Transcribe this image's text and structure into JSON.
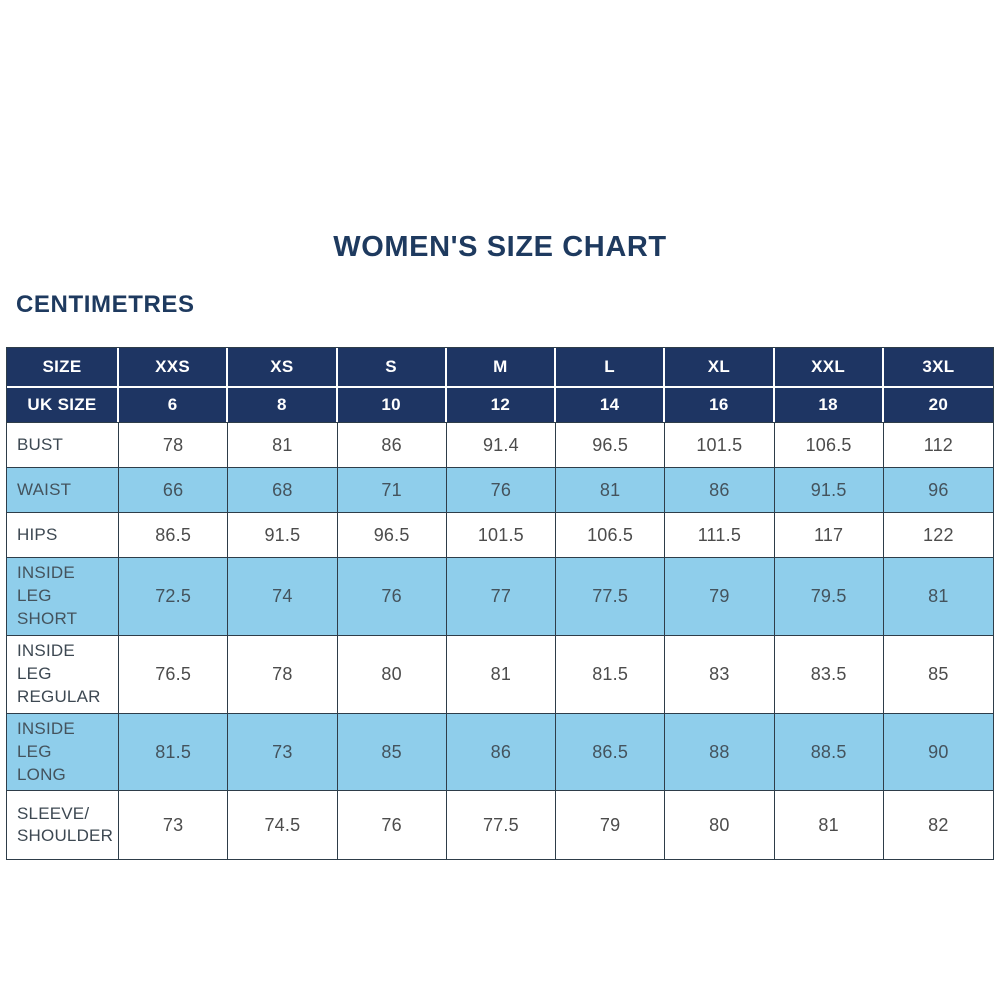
{
  "title": "WOMEN'S SIZE CHART",
  "unit_label": "CENTIMETRES",
  "colors": {
    "navy": "#1e3563",
    "light_blue": "#8fceeb",
    "border": "#2e3d49",
    "header_text": "#ffffff",
    "title_text": "#1e3a5f",
    "body_text": "#4c4c4c",
    "shaded_text": "#44535d",
    "label_text": "#3d4852"
  },
  "chart_data": {
    "type": "table",
    "title": "WOMEN'S SIZE CHART",
    "unit": "CENTIMETRES",
    "header": [
      "SIZE",
      "XXS",
      "XS",
      "S",
      "M",
      "L",
      "XL",
      "XXL",
      "3XL"
    ],
    "uk_size_row": {
      "label": "UK SIZE",
      "values": [
        "6",
        "8",
        "10",
        "12",
        "14",
        "16",
        "18",
        "20"
      ]
    },
    "rows": [
      {
        "label": "BUST",
        "values": [
          "78",
          "81",
          "86",
          "91.4",
          "96.5",
          "101.5",
          "106.5",
          "112"
        ],
        "shaded": false
      },
      {
        "label": "WAIST",
        "values": [
          "66",
          "68",
          "71",
          "76",
          "81",
          "86",
          "91.5",
          "96"
        ],
        "shaded": true
      },
      {
        "label": "HIPS",
        "values": [
          "86.5",
          "91.5",
          "96.5",
          "101.5",
          "106.5",
          "111.5",
          "117",
          "122"
        ],
        "shaded": false
      },
      {
        "label": "INSIDE LEG\nSHORT",
        "values": [
          "72.5",
          "74",
          "76",
          "77",
          "77.5",
          "79",
          "79.5",
          "81"
        ],
        "shaded": true
      },
      {
        "label": "INSIDE LEG\nREGULAR",
        "values": [
          "76.5",
          "78",
          "80",
          "81",
          "81.5",
          "83",
          "83.5",
          "85"
        ],
        "shaded": false
      },
      {
        "label": "INSIDE LEG\nLONG",
        "values": [
          "81.5",
          "73",
          "85",
          "86",
          "86.5",
          "88",
          "88.5",
          "90"
        ],
        "shaded": true
      },
      {
        "label": "SLEEVE/\nSHOULDER",
        "values": [
          "73",
          "74.5",
          "76",
          "77.5",
          "79",
          "80",
          "81",
          "82"
        ],
        "shaded": false
      }
    ]
  }
}
